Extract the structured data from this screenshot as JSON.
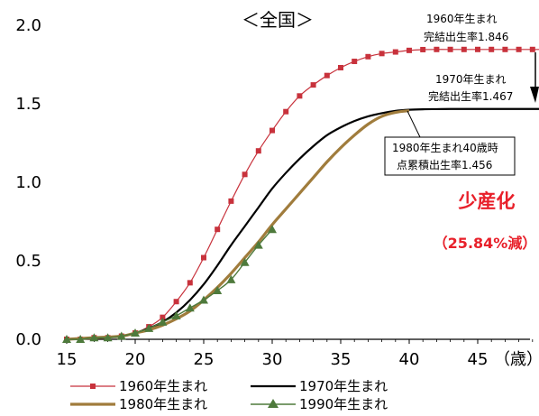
{
  "chart_data": {
    "type": "line",
    "title": "＜全国＞",
    "xlabel": "（歳）",
    "ylabel": "",
    "xlim": [
      15,
      50
    ],
    "ylim": [
      0,
      2.0
    ],
    "x_ticks": [
      "15",
      "20",
      "25",
      "30",
      "35",
      "40",
      "45"
    ],
    "y_ticks": [
      "0.0",
      "0.5",
      "1.0",
      "1.5",
      "2.0"
    ],
    "grid": false,
    "legend_position": "bottom",
    "series": [
      {
        "name": "1960年生まれ",
        "color": "#c8323c",
        "marker": "square",
        "x": [
          15,
          16,
          17,
          18,
          19,
          20,
          21,
          22,
          23,
          24,
          25,
          26,
          27,
          28,
          29,
          30,
          31,
          32,
          33,
          34,
          35,
          36,
          37,
          38,
          39,
          40,
          41,
          42,
          43,
          44,
          45,
          46,
          47,
          48,
          49,
          50
        ],
        "y": [
          0.0,
          0.0,
          0.01,
          0.01,
          0.02,
          0.04,
          0.08,
          0.14,
          0.24,
          0.36,
          0.52,
          0.7,
          0.88,
          1.05,
          1.2,
          1.33,
          1.45,
          1.55,
          1.62,
          1.68,
          1.73,
          1.77,
          1.8,
          1.82,
          1.83,
          1.84,
          1.845,
          1.846,
          1.846,
          1.846,
          1.846,
          1.846,
          1.846,
          1.846,
          1.846,
          1.846
        ]
      },
      {
        "name": "1970年生まれ",
        "color": "#000000",
        "marker": "none",
        "x": [
          15,
          17,
          19,
          20,
          21,
          22,
          23,
          24,
          25,
          26,
          27,
          28,
          29,
          30,
          31,
          32,
          33,
          34,
          35,
          36,
          37,
          38,
          39,
          40,
          41,
          42,
          43,
          44,
          45,
          46,
          47,
          48,
          49,
          50
        ],
        "y": [
          0.0,
          0.01,
          0.02,
          0.04,
          0.07,
          0.11,
          0.17,
          0.25,
          0.35,
          0.47,
          0.6,
          0.72,
          0.84,
          0.96,
          1.06,
          1.15,
          1.23,
          1.3,
          1.35,
          1.39,
          1.42,
          1.44,
          1.455,
          1.462,
          1.465,
          1.466,
          1.467,
          1.467,
          1.467,
          1.467,
          1.467,
          1.467,
          1.467,
          1.467
        ]
      },
      {
        "name": "1980年生まれ",
        "color": "#a07c3c",
        "marker": "none",
        "x": [
          15,
          17,
          19,
          20,
          21,
          22,
          23,
          24,
          25,
          26,
          27,
          28,
          29,
          30,
          31,
          32,
          33,
          34,
          35,
          36,
          37,
          38,
          39,
          40
        ],
        "y": [
          0.0,
          0.01,
          0.02,
          0.04,
          0.06,
          0.09,
          0.13,
          0.18,
          0.25,
          0.33,
          0.42,
          0.52,
          0.62,
          0.73,
          0.83,
          0.93,
          1.03,
          1.13,
          1.22,
          1.3,
          1.37,
          1.42,
          1.445,
          1.456
        ]
      },
      {
        "name": "1990年生まれ",
        "color": "#4e7a3c",
        "marker": "triangle",
        "x": [
          15,
          16,
          17,
          18,
          19,
          20,
          21,
          22,
          23,
          24,
          25,
          26,
          27,
          28,
          29,
          30
        ],
        "y": [
          0.0,
          0.0,
          0.01,
          0.01,
          0.02,
          0.04,
          0.07,
          0.11,
          0.15,
          0.2,
          0.25,
          0.31,
          0.38,
          0.49,
          0.6,
          0.7
        ]
      }
    ],
    "annotations": [
      {
        "lines": [
          "1960年生まれ",
          "完結出生率1.846"
        ]
      },
      {
        "lines": [
          "1970年生まれ",
          "完結出生率1.467"
        ]
      },
      {
        "lines": [
          "1980年生まれ40歳時",
          "点累積出生率1.456"
        ]
      }
    ],
    "callout": {
      "main": "少産化",
      "sub": "（25.84%減）"
    }
  }
}
